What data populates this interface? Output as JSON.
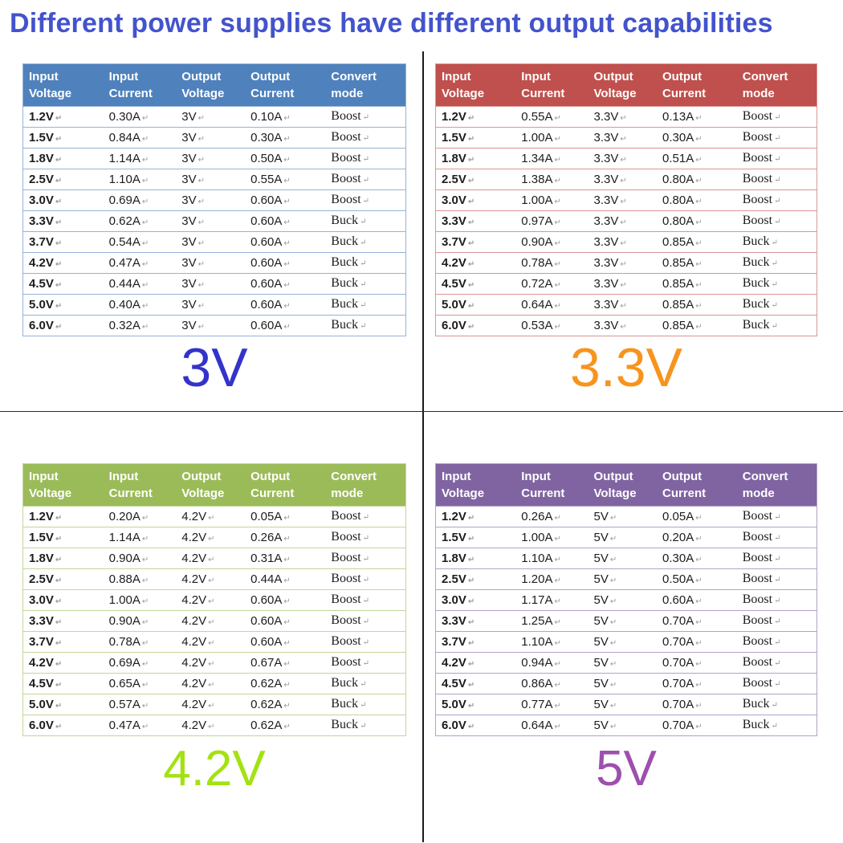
{
  "title": "Different power supplies have different output capabilities",
  "columns": [
    "Input Voltage",
    "Input Current",
    "Output Voltage",
    "Output Current",
    "Convert mode"
  ],
  "tables": [
    {
      "label": "3V",
      "header_color": "#4f81bd",
      "line_color": "#95b3d7",
      "label_color": "#3333cc",
      "rows": [
        [
          "1.2V",
          "0.30A",
          "3V",
          "0.10A",
          "Boost"
        ],
        [
          "1.5V",
          "0.84A",
          "3V",
          "0.30A",
          "Boost"
        ],
        [
          "1.8V",
          "1.14A",
          "3V",
          "0.50A",
          "Boost"
        ],
        [
          "2.5V",
          "1.10A",
          "3V",
          "0.55A",
          "Boost"
        ],
        [
          "3.0V",
          "0.69A",
          "3V",
          "0.60A",
          "Boost"
        ],
        [
          "3.3V",
          "0.62A",
          "3V",
          "0.60A",
          "Buck"
        ],
        [
          "3.7V",
          "0.54A",
          "3V",
          "0.60A",
          "Buck"
        ],
        [
          "4.2V",
          "0.47A",
          "3V",
          "0.60A",
          "Buck"
        ],
        [
          "4.5V",
          "0.44A",
          "3V",
          "0.60A",
          "Buck"
        ],
        [
          "5.0V",
          "0.40A",
          "3V",
          "0.60A",
          "Buck"
        ],
        [
          "6.0V",
          "0.32A",
          "3V",
          "0.60A",
          "Buck"
        ]
      ]
    },
    {
      "label": "3.3V",
      "header_color": "#c0504d",
      "line_color": "#d99694",
      "label_color": "#f7941e",
      "rows": [
        [
          "1.2V",
          "0.55A",
          "3.3V",
          "0.13A",
          "Boost"
        ],
        [
          "1.5V",
          "1.00A",
          "3.3V",
          "0.30A",
          "Boost"
        ],
        [
          "1.8V",
          "1.34A",
          "3.3V",
          "0.51A",
          "Boost"
        ],
        [
          "2.5V",
          "1.38A",
          "3.3V",
          "0.80A",
          "Boost"
        ],
        [
          "3.0V",
          "1.00A",
          "3.3V",
          "0.80A",
          "Boost"
        ],
        [
          "3.3V",
          "0.97A",
          "3.3V",
          "0.80A",
          "Boost"
        ],
        [
          "3.7V",
          "0.90A",
          "3.3V",
          "0.85A",
          "Buck"
        ],
        [
          "4.2V",
          "0.78A",
          "3.3V",
          "0.85A",
          "Buck"
        ],
        [
          "4.5V",
          "0.72A",
          "3.3V",
          "0.85A",
          "Buck"
        ],
        [
          "5.0V",
          "0.64A",
          "3.3V",
          "0.85A",
          "Buck"
        ],
        [
          "6.0V",
          "0.53A",
          "3.3V",
          "0.85A",
          "Buck"
        ]
      ]
    },
    {
      "label": "4.2V",
      "header_color": "#9bbb59",
      "line_color": "#c3d69b",
      "label_color": "#a3e211",
      "rows": [
        [
          "1.2V",
          "0.20A",
          "4.2V",
          "0.05A",
          "Boost"
        ],
        [
          "1.5V",
          "1.14A",
          "4.2V",
          "0.26A",
          "Boost"
        ],
        [
          "1.8V",
          "0.90A",
          "4.2V",
          "0.31A",
          "Boost"
        ],
        [
          "2.5V",
          "0.88A",
          "4.2V",
          "0.44A",
          "Boost"
        ],
        [
          "3.0V",
          "1.00A",
          "4.2V",
          "0.60A",
          "Boost"
        ],
        [
          "3.3V",
          "0.90A",
          "4.2V",
          "0.60A",
          "Boost"
        ],
        [
          "3.7V",
          "0.78A",
          "4.2V",
          "0.60A",
          "Boost"
        ],
        [
          "4.2V",
          "0.69A",
          "4.2V",
          "0.67A",
          "Boost"
        ],
        [
          "4.5V",
          "0.65A",
          "4.2V",
          "0.62A",
          "Buck"
        ],
        [
          "5.0V",
          "0.57A",
          "4.2V",
          "0.62A",
          "Buck"
        ],
        [
          "6.0V",
          "0.47A",
          "4.2V",
          "0.62A",
          "Buck"
        ]
      ]
    },
    {
      "label": "5V",
      "header_color": "#8064a2",
      "line_color": "#b3a2c7",
      "label_color": "#9e4fae",
      "rows": [
        [
          "1.2V",
          "0.26A",
          "5V",
          "0.05A",
          "Boost"
        ],
        [
          "1.5V",
          "1.00A",
          "5V",
          "0.20A",
          "Boost"
        ],
        [
          "1.8V",
          "1.10A",
          "5V",
          "0.30A",
          "Boost"
        ],
        [
          "2.5V",
          "1.20A",
          "5V",
          "0.50A",
          "Boost"
        ],
        [
          "3.0V",
          "1.17A",
          "5V",
          "0.60A",
          "Boost"
        ],
        [
          "3.3V",
          "1.25A",
          "5V",
          "0.70A",
          "Boost"
        ],
        [
          "3.7V",
          "1.10A",
          "5V",
          "0.70A",
          "Boost"
        ],
        [
          "4.2V",
          "0.94A",
          "5V",
          "0.70A",
          "Boost"
        ],
        [
          "4.5V",
          "0.86A",
          "5V",
          "0.70A",
          "Boost"
        ],
        [
          "5.0V",
          "0.77A",
          "5V",
          "0.70A",
          "Buck"
        ],
        [
          "6.0V",
          "0.64A",
          "5V",
          "0.70A",
          "Buck"
        ]
      ]
    }
  ]
}
